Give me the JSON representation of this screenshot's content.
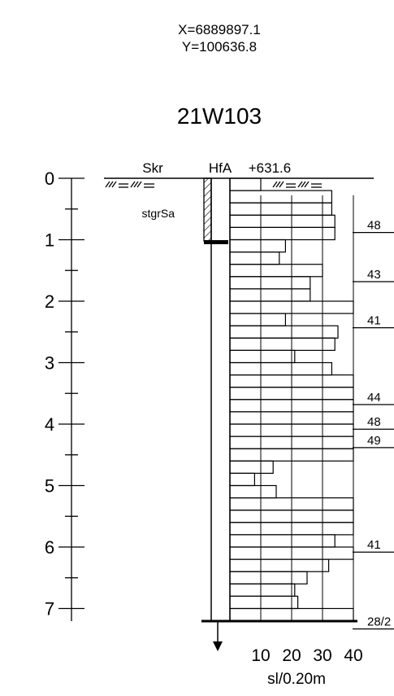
{
  "coordinates": {
    "x": "X=6889897.1",
    "y": "Y=100636.8"
  },
  "point_id": "21W103",
  "header": {
    "left_method": "Skr",
    "right_method": "HfA",
    "elevation": "+631.6"
  },
  "soil_label": "stgrSa",
  "depth_ticks": [
    "0",
    "1",
    "2",
    "3",
    "4",
    "5",
    "6",
    "7"
  ],
  "right_values": [
    {
      "label": "48",
      "depth": 0.75
    },
    {
      "label": "43",
      "depth": 1.55
    },
    {
      "label": "41",
      "depth": 2.3
    },
    {
      "label": "44",
      "depth": 3.55
    },
    {
      "label": "48",
      "depth": 3.95
    },
    {
      "label": "49",
      "depth": 4.25
    },
    {
      "label": "41",
      "depth": 5.95
    },
    {
      "label": "28/2",
      "depth": 7.2
    }
  ],
  "chart_data": {
    "type": "bar",
    "orientation": "horizontal",
    "ylabel": "",
    "xlabel": "sl/0.20m",
    "x_ticks": [
      "10",
      "20",
      "30",
      "40"
    ],
    "xlim": [
      0,
      40
    ],
    "depth_range": [
      0,
      7.2
    ],
    "interval_m": 0.2,
    "values": [
      10,
      33,
      33,
      34,
      34,
      18,
      16,
      30,
      26,
      26,
      40,
      18,
      35,
      34,
      21,
      33,
      40,
      40,
      40,
      40,
      40,
      40,
      40,
      14,
      8,
      15,
      40,
      40,
      40,
      34,
      40,
      32,
      25,
      21,
      22,
      40
    ]
  }
}
